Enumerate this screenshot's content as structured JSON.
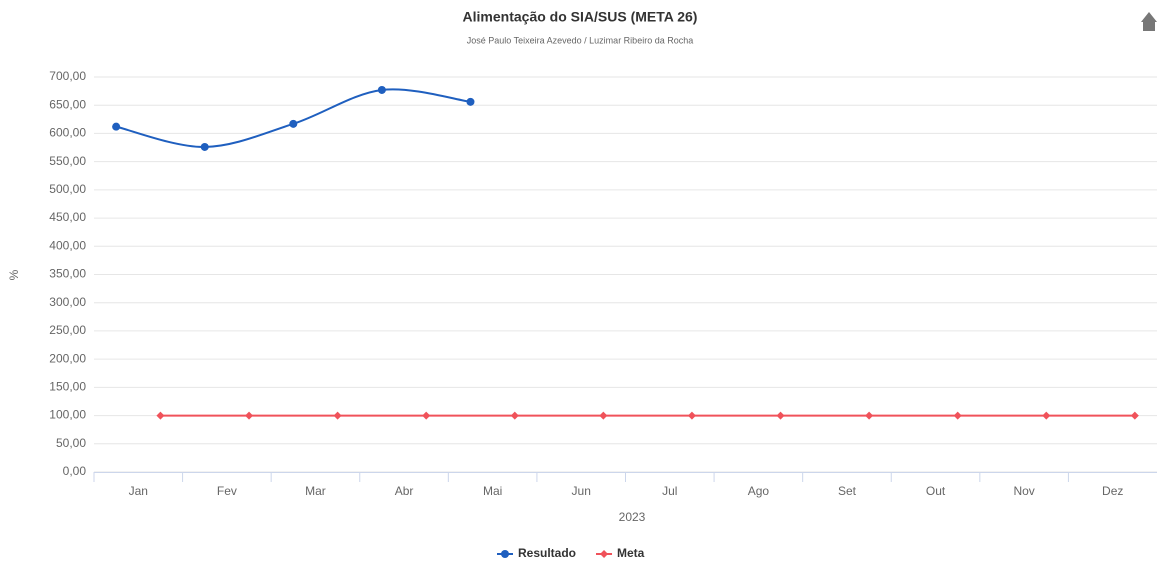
{
  "chart_data": {
    "type": "line",
    "title": "Alimentação do SIA/SUS (META 26)",
    "subtitle": "José Paulo Teixeira Azevedo / Luzimar Ribeiro da Rocha",
    "y_label": "%",
    "x_label": "2023",
    "categories": [
      "Jan",
      "Fev",
      "Mar",
      "Abr",
      "Mai",
      "Jun",
      "Jul",
      "Ago",
      "Set",
      "Out",
      "Nov",
      "Dez"
    ],
    "series": [
      {
        "name": "Resultado",
        "color": "#1f5fbf",
        "marker": "circle",
        "values": [
          612,
          576,
          617,
          677,
          656,
          null,
          null,
          null,
          null,
          null,
          null,
          null
        ]
      },
      {
        "name": "Meta",
        "color": "#f0525a",
        "marker": "diamond",
        "values": [
          100,
          100,
          100,
          100,
          100,
          100,
          100,
          100,
          100,
          100,
          100,
          100
        ]
      }
    ],
    "ylim": [
      0,
      700
    ],
    "yticks": [
      {
        "value": 0,
        "label": "0,00"
      },
      {
        "value": 50,
        "label": "50,00"
      },
      {
        "value": 100,
        "label": "100,00"
      },
      {
        "value": 150,
        "label": "150,00"
      },
      {
        "value": 200,
        "label": "200,00"
      },
      {
        "value": 250,
        "label": "250,00"
      },
      {
        "value": 300,
        "label": "300,00"
      },
      {
        "value": 350,
        "label": "350,00"
      },
      {
        "value": 400,
        "label": "400,00"
      },
      {
        "value": 450,
        "label": "450,00"
      },
      {
        "value": 500,
        "label": "500,00"
      },
      {
        "value": 550,
        "label": "550,00"
      },
      {
        "value": 600,
        "label": "600,00"
      },
      {
        "value": 650,
        "label": "650,00"
      },
      {
        "value": 700,
        "label": "700,00"
      }
    ],
    "grid": true,
    "legend": "bottom"
  }
}
